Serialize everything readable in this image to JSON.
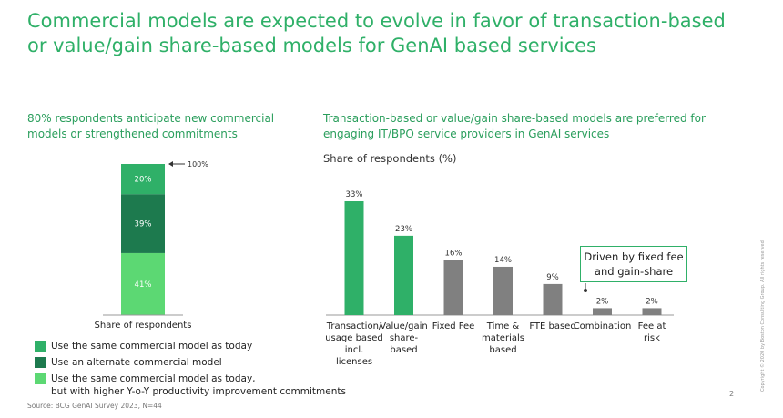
{
  "title": "Commercial models are expected to evolve in favor of transaction-based or value/gain share-based models for GenAI based services",
  "left_subtitle": "80% respondents anticipate  new commercial models or strengthened commitments",
  "right_subtitle": "Transaction-based or value/gain share-based models are preferred for engaging IT/BPO service providers in GenAI services",
  "chart_label": "Share of respondents (%)",
  "callout": "Driven by fixed fee\nand gain-share",
  "source": "Source: BCG GenAI Survey 2023, N=44",
  "page_number": "2",
  "copyright": "Copyright © 2020 by Boston Consulting Group. All rights reserved.",
  "colors": {
    "accent": "#2fb068",
    "dark_green": "#1d7a4e",
    "mid_green": "#2fb068",
    "light_green": "#5cd873",
    "gray": "#808080"
  },
  "chart_data": [
    {
      "type": "bar",
      "stacked": true,
      "categories": [
        "Share of respondents"
      ],
      "series": [
        {
          "name": "Use the same commercial model as today, but with higher Y-o-Y productivity improvement commitments",
          "values": [
            41
          ],
          "label": "41%",
          "color": "#5cd873"
        },
        {
          "name": "Use an alternate commercial model",
          "values": [
            39
          ],
          "label": "39%",
          "color": "#1d7a4e"
        },
        {
          "name": "Use the same commercial model as today",
          "values": [
            20
          ],
          "label": "20%",
          "color": "#2fb068"
        }
      ],
      "xlabel": "Share of respondents",
      "total_label": "100%",
      "ylim": [
        0,
        100
      ]
    },
    {
      "type": "bar",
      "title": "Share of respondents (%)",
      "categories": [
        "Transaction/\nusage based\nincl.\nlicenses",
        "Value/gain\nshare-\nbased",
        "Fixed Fee",
        "Time &\nmaterials\nbased",
        "FTE based",
        "Combination",
        "Fee at\nrisk"
      ],
      "values": [
        33,
        23,
        16,
        14,
        9,
        2,
        2
      ],
      "labels": [
        "33%",
        "23%",
        "16%",
        "14%",
        "9%",
        "2%",
        "2%"
      ],
      "colors": [
        "#2fb068",
        "#2fb068",
        "#808080",
        "#808080",
        "#808080",
        "#808080",
        "#808080"
      ],
      "ylim": [
        0,
        33
      ]
    }
  ],
  "legend": [
    {
      "label": "Use the same commercial model as today",
      "color": "#2fb068"
    },
    {
      "label": "Use an alternate commercial model",
      "color": "#1d7a4e"
    },
    {
      "label": "Use the same commercial model as today,\nbut with higher Y-o-Y productivity improvement commitments",
      "color": "#5cd873"
    }
  ]
}
